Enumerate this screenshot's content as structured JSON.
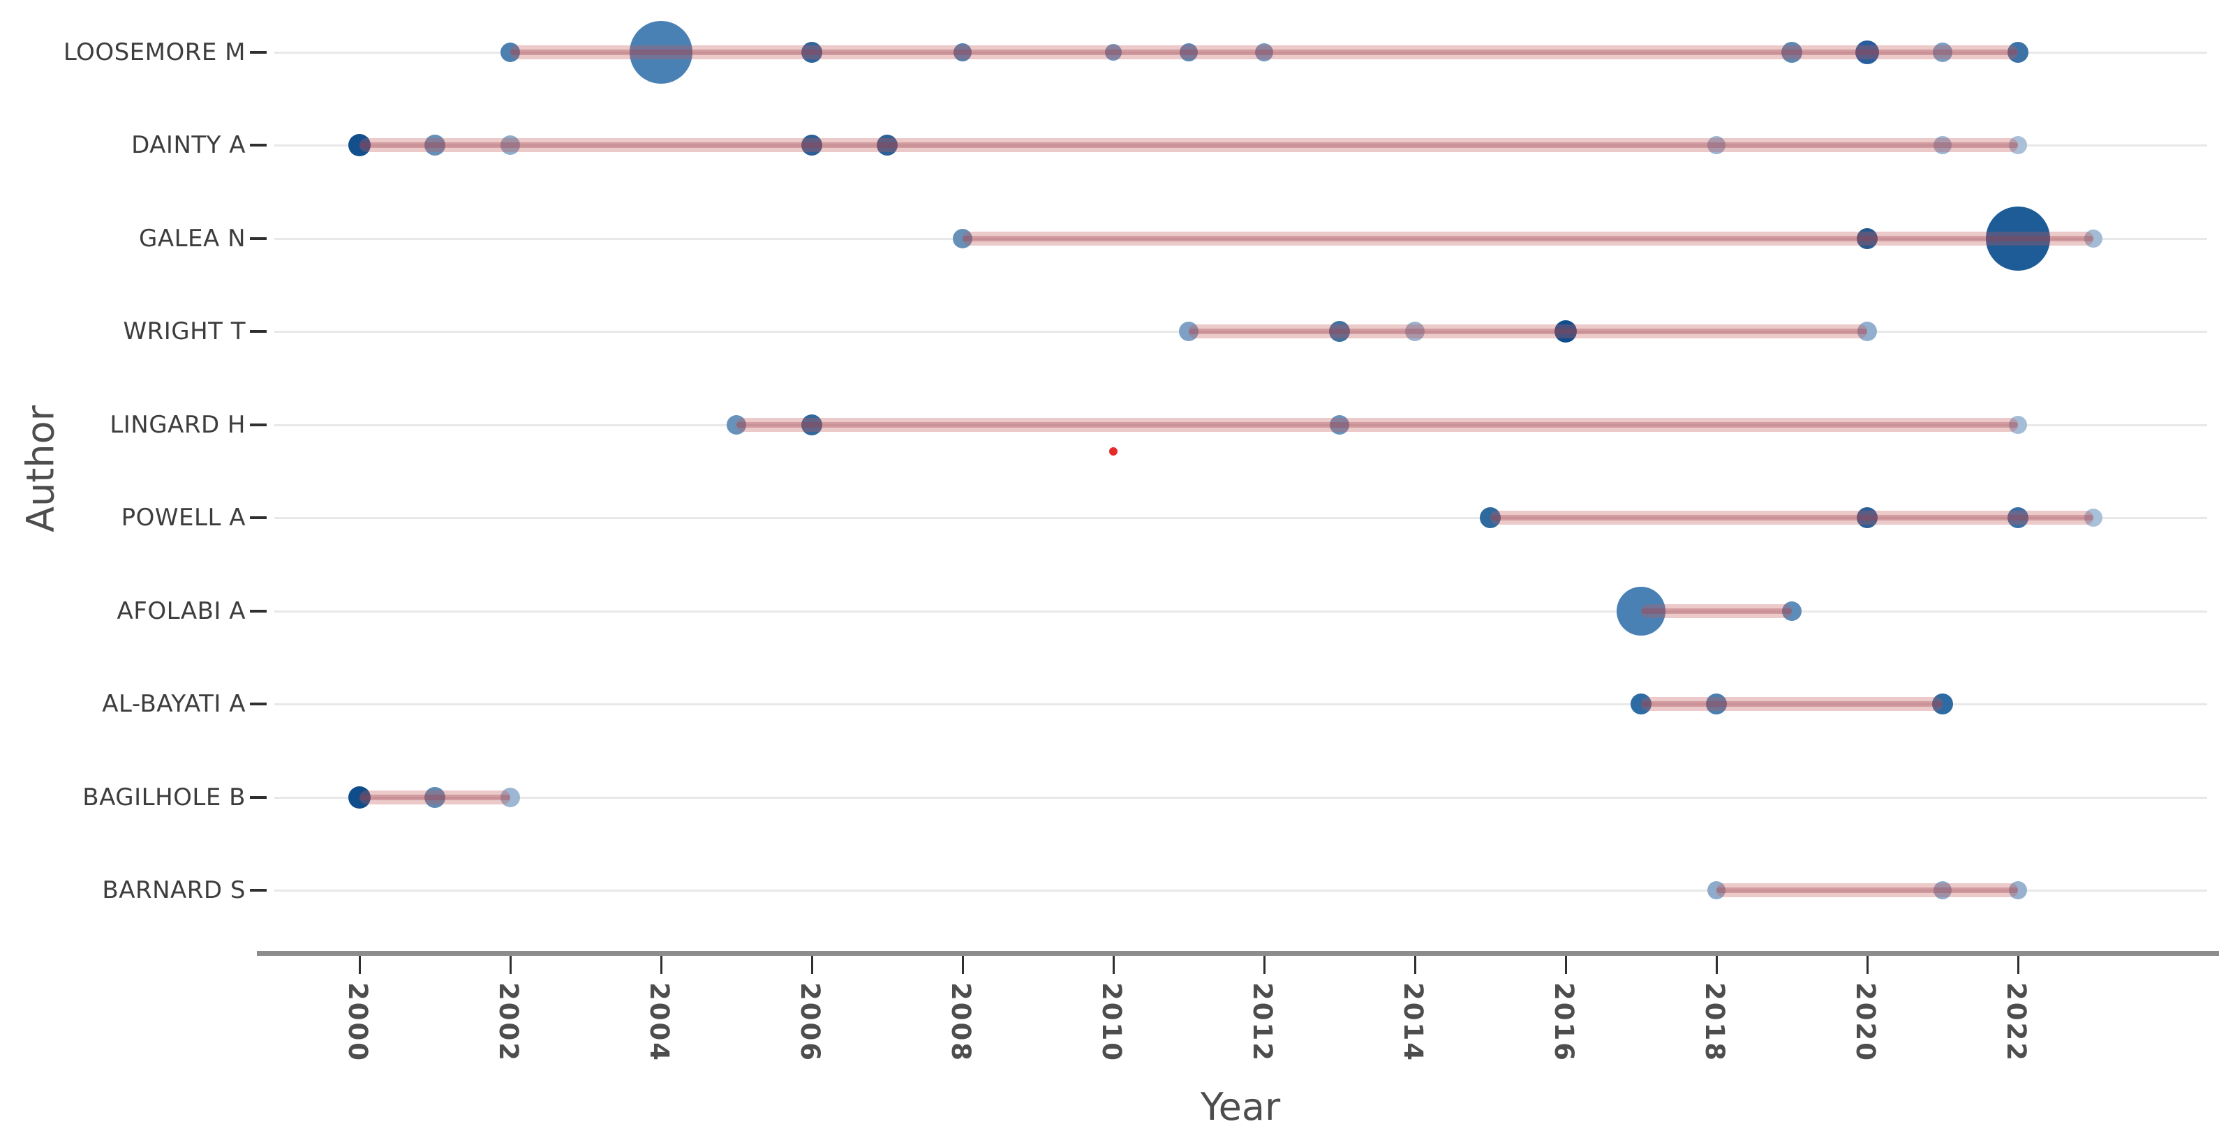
{
  "chart_data": {
    "type": "scatter",
    "subtype": "bubble-timeline-authors-production-over-time",
    "xlabel": "Year",
    "ylabel": "Author",
    "x_ticks": [
      2000,
      2002,
      2004,
      2006,
      2008,
      2010,
      2012,
      2014,
      2016,
      2018,
      2020,
      2022
    ],
    "x_range": [
      1998.6,
      2024.5
    ],
    "grid": "horizontal-only",
    "legend": "none",
    "bubble_size_note": "bubble radius in px of source image; larger = more articles that year",
    "bubble_color_note": "darker blue = higher citations per year; lighter = fewer",
    "authors": [
      {
        "name": "LOOSEMORE M",
        "line_span": [
          2002,
          2022
        ],
        "points": [
          {
            "year": 2002,
            "r": 14,
            "color": "#4d80ae"
          },
          {
            "year": 2004,
            "r": 45,
            "color": "#4a81b4"
          },
          {
            "year": 2006,
            "r": 15,
            "color": "#30659b"
          },
          {
            "year": 2008,
            "r": 13,
            "color": "#537fae"
          },
          {
            "year": 2010,
            "r": 12,
            "color": "#6b94bd"
          },
          {
            "year": 2011,
            "r": 13,
            "color": "#5a87b4"
          },
          {
            "year": 2012,
            "r": 13,
            "color": "#7698bf"
          },
          {
            "year": 2019,
            "r": 15,
            "color": "#5f87b0"
          },
          {
            "year": 2020,
            "r": 17,
            "color": "#2a5d9b"
          },
          {
            "year": 2021,
            "r": 14,
            "color": "#7ba0c4"
          },
          {
            "year": 2022,
            "r": 15,
            "color": "#3d72a7"
          }
        ]
      },
      {
        "name": "DAINTY A",
        "line_span": [
          2000,
          2022
        ],
        "points": [
          {
            "year": 2000,
            "r": 16,
            "color": "#124f8c"
          },
          {
            "year": 2001,
            "r": 15,
            "color": "#6690b8"
          },
          {
            "year": 2002,
            "r": 14,
            "color": "#8fadc9"
          },
          {
            "year": 2006,
            "r": 15,
            "color": "#2d6094"
          },
          {
            "year": 2007,
            "r": 15,
            "color": "#2d6094"
          },
          {
            "year": 2018,
            "r": 13,
            "color": "#9cb5d1"
          },
          {
            "year": 2021,
            "r": 13,
            "color": "#9cb5d1"
          },
          {
            "year": 2022,
            "r": 13,
            "color": "#abc0d8"
          }
        ]
      },
      {
        "name": "GALEA N",
        "line_span": [
          2008,
          2023
        ],
        "points": [
          {
            "year": 2008,
            "r": 14,
            "color": "#6690b8"
          },
          {
            "year": 2020,
            "r": 15,
            "color": "#27598f"
          },
          {
            "year": 2022,
            "r": 46,
            "color": "#1d5c97"
          },
          {
            "year": 2023,
            "r": 13,
            "color": "#a3bbd4"
          }
        ]
      },
      {
        "name": "WRIGHT T",
        "line_span": [
          2011,
          2020
        ],
        "points": [
          {
            "year": 2011,
            "r": 14,
            "color": "#7da0c4"
          },
          {
            "year": 2013,
            "r": 15,
            "color": "#41719f"
          },
          {
            "year": 2014,
            "r": 14,
            "color": "#9db4cd"
          },
          {
            "year": 2016,
            "r": 16,
            "color": "#0f4d8c"
          },
          {
            "year": 2020,
            "r": 14,
            "color": "#93afcf"
          }
        ]
      },
      {
        "name": "LINGARD H",
        "line_span": [
          2005,
          2022
        ],
        "points": [
          {
            "year": 2005,
            "r": 14,
            "color": "#6992bb"
          },
          {
            "year": 2006,
            "r": 15,
            "color": "#33689d"
          },
          {
            "year": 2013,
            "r": 14,
            "color": "#6992bb"
          },
          {
            "year": 2022,
            "r": 13,
            "color": "#a5bcd6"
          }
        ],
        "outlier_dot": {
          "year": 2010,
          "r": 6,
          "color": "#e62a2a",
          "dy": 38
        }
      },
      {
        "name": "POWELL A",
        "line_span": [
          2015,
          2023
        ],
        "points": [
          {
            "year": 2015,
            "r": 15,
            "color": "#2f6a9e"
          },
          {
            "year": 2020,
            "r": 15,
            "color": "#2d5f97"
          },
          {
            "year": 2022,
            "r": 15,
            "color": "#3a6fa5"
          },
          {
            "year": 2023,
            "r": 13,
            "color": "#a9c0d9"
          }
        ]
      },
      {
        "name": "AFOLABI A",
        "line_span": [
          2017,
          2019
        ],
        "points": [
          {
            "year": 2017,
            "r": 35,
            "color": "#4981b4"
          },
          {
            "year": 2019,
            "r": 14,
            "color": "#5d8cb8"
          }
        ]
      },
      {
        "name": "AL-BAYATI A",
        "line_span": [
          2017,
          2021
        ],
        "points": [
          {
            "year": 2017,
            "r": 15,
            "color": "#2e6ba2"
          },
          {
            "year": 2018,
            "r": 15,
            "color": "#4a7fb0"
          },
          {
            "year": 2021,
            "r": 15,
            "color": "#2e6ba2"
          }
        ]
      },
      {
        "name": "BAGILHOLE B",
        "line_span": [
          2000,
          2002
        ],
        "points": [
          {
            "year": 2000,
            "r": 16,
            "color": "#0f4c8a"
          },
          {
            "year": 2001,
            "r": 15,
            "color": "#5f8ab3"
          },
          {
            "year": 2002,
            "r": 14,
            "color": "#9db6d2"
          }
        ]
      },
      {
        "name": "BARNARD S",
        "line_span": [
          2018,
          2022
        ],
        "points": [
          {
            "year": 2018,
            "r": 13,
            "color": "#8fabcc"
          },
          {
            "year": 2021,
            "r": 13,
            "color": "#8fabcc"
          },
          {
            "year": 2022,
            "r": 13,
            "color": "#97b1cf"
          }
        ]
      }
    ],
    "colors": {
      "timeline_band": "#c55a5a",
      "timeline_core": "#a03c46",
      "gridline": "#e8e8e8",
      "axis_line": "#8c8c8c",
      "tick_mark": "#2f2f2f",
      "tick_label": "#4d4d4d",
      "author_label": "#3d3d3d",
      "axis_title": "#4d4d4d",
      "outlier_red": "#e62a2a"
    }
  }
}
